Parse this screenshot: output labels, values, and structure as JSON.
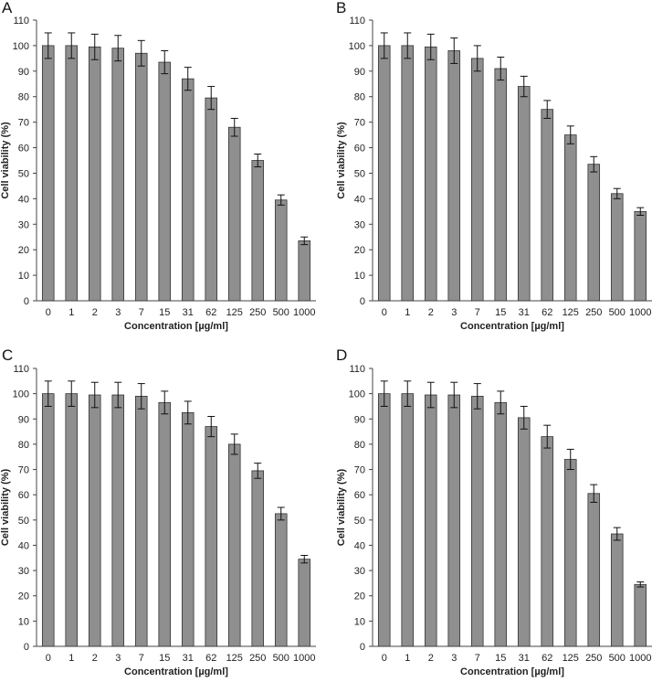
{
  "figure": {
    "colors": {
      "bar": "#8f8f8f",
      "bar_edge": "#333333",
      "axis": "#444444",
      "text": "#222222"
    }
  },
  "chart_data": [
    {
      "panel": "A",
      "type": "bar",
      "categories": [
        "0",
        "1",
        "2",
        "3",
        "7",
        "15",
        "31",
        "62",
        "125",
        "250",
        "500",
        "1000"
      ],
      "values": [
        100,
        100,
        99.5,
        99,
        97,
        93.5,
        87,
        79.5,
        68,
        55,
        39.5,
        23.5
      ],
      "errors": [
        5,
        5,
        5,
        5,
        5,
        4.5,
        4.5,
        4.5,
        3.5,
        2.5,
        2,
        1.5
      ],
      "xlabel": "Concentration [µg/ml]",
      "ylabel": "Cell viability (%)",
      "ylim": [
        0,
        110
      ],
      "yticks": [
        0,
        10,
        20,
        30,
        40,
        50,
        60,
        70,
        80,
        90,
        100,
        110
      ]
    },
    {
      "panel": "B",
      "type": "bar",
      "categories": [
        "0",
        "1",
        "2",
        "3",
        "7",
        "15",
        "31",
        "62",
        "125",
        "250",
        "500",
        "1000"
      ],
      "values": [
        100,
        100,
        99.5,
        98,
        95,
        91,
        84,
        75,
        65,
        53.5,
        42,
        35
      ],
      "errors": [
        5,
        5,
        5,
        5,
        5,
        4.5,
        4,
        3.5,
        3.5,
        3,
        2,
        1.5
      ],
      "xlabel": "Concentration [µg/ml]",
      "ylabel": "Cell viability (%)",
      "ylim": [
        0,
        110
      ],
      "yticks": [
        0,
        10,
        20,
        30,
        40,
        50,
        60,
        70,
        80,
        90,
        100,
        110
      ]
    },
    {
      "panel": "C",
      "type": "bar",
      "categories": [
        "0",
        "1",
        "2",
        "3",
        "7",
        "15",
        "31",
        "62",
        "125",
        "250",
        "500",
        "1000"
      ],
      "values": [
        100,
        100,
        99.5,
        99.5,
        99,
        96.5,
        92.5,
        87,
        80,
        69.5,
        52.5,
        34.5
      ],
      "errors": [
        5,
        5,
        5,
        5,
        5,
        4.5,
        4.5,
        4,
        4,
        3,
        2.5,
        1.5
      ],
      "xlabel": "Concentration [µg/ml]",
      "ylabel": "Cell viability (%)",
      "ylim": [
        0,
        110
      ],
      "yticks": [
        0,
        10,
        20,
        30,
        40,
        50,
        60,
        70,
        80,
        90,
        100,
        110
      ]
    },
    {
      "panel": "D",
      "type": "bar",
      "categories": [
        "0",
        "1",
        "2",
        "3",
        "7",
        "15",
        "31",
        "62",
        "125",
        "250",
        "500",
        "1000"
      ],
      "values": [
        100,
        100,
        99.5,
        99.5,
        99,
        96.5,
        90.5,
        83,
        74,
        60.5,
        44.5,
        24.5
      ],
      "errors": [
        5,
        5,
        5,
        5,
        5,
        4.5,
        4.5,
        4.5,
        4,
        3.5,
        2.5,
        1
      ],
      "xlabel": "Concentration [µg/ml]",
      "ylabel": "Cell viability (%)",
      "ylim": [
        0,
        110
      ],
      "yticks": [
        0,
        10,
        20,
        30,
        40,
        50,
        60,
        70,
        80,
        90,
        100,
        110
      ]
    }
  ]
}
